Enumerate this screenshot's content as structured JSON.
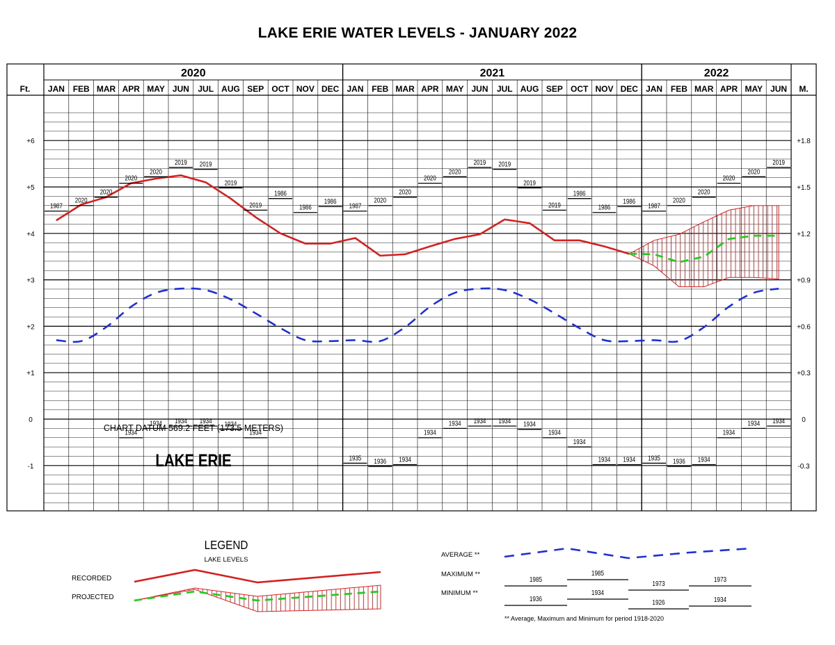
{
  "title": "LAKE ERIE WATER LEVELS - JANUARY 2022",
  "years": [
    "2020",
    "2021",
    "2022"
  ],
  "months": [
    "JAN",
    "FEB",
    "MAR",
    "APR",
    "MAY",
    "JUN",
    "JUL",
    "AUG",
    "SEP",
    "OCT",
    "NOV",
    "DEC",
    "JAN",
    "FEB",
    "MAR",
    "APR",
    "MAY",
    "JUN",
    "JUL",
    "AUG",
    "SEP",
    "OCT",
    "NOV",
    "DEC",
    "JAN",
    "FEB",
    "MAR",
    "APR",
    "MAY",
    "JUN"
  ],
  "left_unit": "Ft.",
  "right_unit": "M.",
  "left_ticks": [
    "+6",
    "+5",
    "+4",
    "+3",
    "+2",
    "+1",
    "0",
    "-1"
  ],
  "right_ticks": [
    "+1.8",
    "+1.5",
    "+1.2",
    "+0.9",
    "+0.6",
    "+0.3",
    "0",
    "-0.3"
  ],
  "datum_text": "CHART DATUM  569.2 FEET (173.5 METERS)",
  "lake_label": "LAKE ERIE",
  "colors": {
    "recorded": "#d42020",
    "projected": "#22cc22",
    "average": "#1f2fd6",
    "band": "#d42020"
  },
  "chart_data": {
    "type": "line",
    "title": "LAKE ERIE WATER LEVELS - JANUARY 2022",
    "ylabel": "Ft.",
    "y2label": "M.",
    "ylim": [
      -2,
      7
    ],
    "categories": [
      "JAN 2020",
      "FEB 2020",
      "MAR 2020",
      "APR 2020",
      "MAY 2020",
      "JUN 2020",
      "JUL 2020",
      "AUG 2020",
      "SEP 2020",
      "OCT 2020",
      "NOV 2020",
      "DEC 2020",
      "JAN 2021",
      "FEB 2021",
      "MAR 2021",
      "APR 2021",
      "MAY 2021",
      "JUN 2021",
      "JUL 2021",
      "AUG 2021",
      "SEP 2021",
      "OCT 2021",
      "NOV 2021",
      "DEC 2021",
      "JAN 2022",
      "FEB 2022",
      "MAR 2022",
      "APR 2022",
      "MAY 2022",
      "JUN 2022"
    ],
    "recorded": [
      {
        "x": 0,
        "y": 4.28
      },
      {
        "x": 1,
        "y": 4.62
      },
      {
        "x": 2,
        "y": 4.78
      },
      {
        "x": 3,
        "y": 5.08
      },
      {
        "x": 4,
        "y": 5.18
      },
      {
        "x": 5,
        "y": 5.25
      },
      {
        "x": 6,
        "y": 5.1
      },
      {
        "x": 7,
        "y": 4.75
      },
      {
        "x": 8,
        "y": 4.35
      },
      {
        "x": 9,
        "y": 4.0
      },
      {
        "x": 10,
        "y": 3.78
      },
      {
        "x": 11,
        "y": 3.78
      },
      {
        "x": 12,
        "y": 3.9
      },
      {
        "x": 13,
        "y": 3.52
      },
      {
        "x": 14,
        "y": 3.55
      },
      {
        "x": 15,
        "y": 3.72
      },
      {
        "x": 16,
        "y": 3.88
      },
      {
        "x": 17,
        "y": 3.98
      },
      {
        "x": 18,
        "y": 4.3
      },
      {
        "x": 19,
        "y": 4.22
      },
      {
        "x": 20,
        "y": 3.85
      },
      {
        "x": 21,
        "y": 3.85
      },
      {
        "x": 22,
        "y": 3.72
      },
      {
        "x": 23,
        "y": 3.56
      }
    ],
    "projected": [
      {
        "x": 24,
        "y": 3.55
      },
      {
        "x": 25,
        "y": 3.38
      },
      {
        "x": 26,
        "y": 3.5
      },
      {
        "x": 27,
        "y": 3.88
      },
      {
        "x": 28,
        "y": 3.95
      },
      {
        "x": 29,
        "y": 3.95
      }
    ],
    "projected_high": [
      {
        "x": 24,
        "y": 3.85
      },
      {
        "x": 25,
        "y": 3.98
      },
      {
        "x": 26,
        "y": 4.25
      },
      {
        "x": 27,
        "y": 4.5
      },
      {
        "x": 28,
        "y": 4.6
      },
      {
        "x": 29,
        "y": 4.6
      }
    ],
    "projected_low": [
      {
        "x": 24,
        "y": 3.3
      },
      {
        "x": 25,
        "y": 2.85
      },
      {
        "x": 26,
        "y": 2.85
      },
      {
        "x": 27,
        "y": 3.05
      },
      {
        "x": 28,
        "y": 3.05
      },
      {
        "x": 29,
        "y": 3.02
      }
    ],
    "average": [
      1.7,
      1.68,
      1.98,
      2.42,
      2.72,
      2.81,
      2.78,
      2.58,
      2.28,
      1.96,
      1.7,
      1.68,
      1.7,
      1.68,
      1.98,
      2.42,
      2.72,
      2.81,
      2.78,
      2.58,
      2.28,
      1.96,
      1.7,
      1.68,
      1.7,
      1.68,
      1.98,
      2.42,
      2.72,
      2.81
    ],
    "maximum": [
      {
        "value": 4.48,
        "label": "1987"
      },
      {
        "value": 4.6,
        "label": "2020"
      },
      {
        "value": 4.78,
        "label": "2020"
      },
      {
        "value": 5.08,
        "label": "2020"
      },
      {
        "value": 5.22,
        "label": "2020"
      },
      {
        "value": 5.42,
        "label": "2019"
      },
      {
        "value": 5.38,
        "label": "2019"
      },
      {
        "value": 4.98,
        "label": "2019"
      },
      {
        "value": 4.5,
        "label": "2019"
      },
      {
        "value": 4.75,
        "label": "1986"
      },
      {
        "value": 4.45,
        "label": "1986"
      },
      {
        "value": 4.58,
        "label": "1986"
      },
      {
        "value": 4.48,
        "label": "1987"
      },
      {
        "value": 4.6,
        "label": "2020"
      },
      {
        "value": 4.78,
        "label": "2020"
      },
      {
        "value": 5.08,
        "label": "2020"
      },
      {
        "value": 5.22,
        "label": "2020"
      },
      {
        "value": 5.42,
        "label": "2019"
      },
      {
        "value": 5.38,
        "label": "2019"
      },
      {
        "value": 4.98,
        "label": "2019"
      },
      {
        "value": 4.5,
        "label": "2019"
      },
      {
        "value": 4.75,
        "label": "1986"
      },
      {
        "value": 4.45,
        "label": "1986"
      },
      {
        "value": 4.58,
        "label": "1986"
      },
      {
        "value": 4.48,
        "label": "1987"
      },
      {
        "value": 4.6,
        "label": "2020"
      },
      {
        "value": 4.78,
        "label": "2020"
      },
      {
        "value": 5.08,
        "label": "2020"
      },
      {
        "value": 5.22,
        "label": "2020"
      },
      {
        "value": 5.42,
        "label": "2019"
      }
    ],
    "minimum": [
      null,
      null,
      null,
      {
        "value": -0.4,
        "label": "1934"
      },
      {
        "value": -0.2,
        "label": "1934"
      },
      {
        "value": -0.15,
        "label": "1934"
      },
      {
        "value": -0.15,
        "label": "1934"
      },
      {
        "value": -0.22,
        "label": "1934"
      },
      {
        "value": -0.4,
        "label": "1934"
      },
      null,
      null,
      null,
      {
        "value": -0.95,
        "label": "1935"
      },
      {
        "value": -1.02,
        "label": "1936"
      },
      {
        "value": -0.98,
        "label": "1934"
      },
      {
        "value": -0.4,
        "label": "1934"
      },
      {
        "value": -0.2,
        "label": "1934"
      },
      {
        "value": -0.15,
        "label": "1934"
      },
      {
        "value": -0.15,
        "label": "1934"
      },
      {
        "value": -0.22,
        "label": "1934"
      },
      {
        "value": -0.4,
        "label": "1934"
      },
      {
        "value": -0.6,
        "label": "1934"
      },
      {
        "value": -0.98,
        "label": "1934"
      },
      {
        "value": -0.98,
        "label": "1934"
      },
      {
        "value": -0.95,
        "label": "1935"
      },
      {
        "value": -1.02,
        "label": "1936"
      },
      {
        "value": -0.98,
        "label": "1934"
      },
      {
        "value": -0.4,
        "label": "1934"
      },
      {
        "value": -0.2,
        "label": "1934"
      },
      {
        "value": -0.15,
        "label": "1934"
      }
    ]
  },
  "legend": {
    "title": "LEGEND",
    "subtitle": "LAKE LEVELS",
    "recorded_label": "RECORDED",
    "projected_label": "PROJECTED",
    "average_label": "AVERAGE **",
    "maximum_label": "MAXIMUM **",
    "minimum_label": "MINIMUM **",
    "max_years": [
      "1985",
      "1985",
      "1973",
      "1973"
    ],
    "min_years": [
      "1936",
      "1934",
      "1926",
      "1934"
    ],
    "footnote": "** Average, Maximum and Minimum for period 1918-2020"
  }
}
